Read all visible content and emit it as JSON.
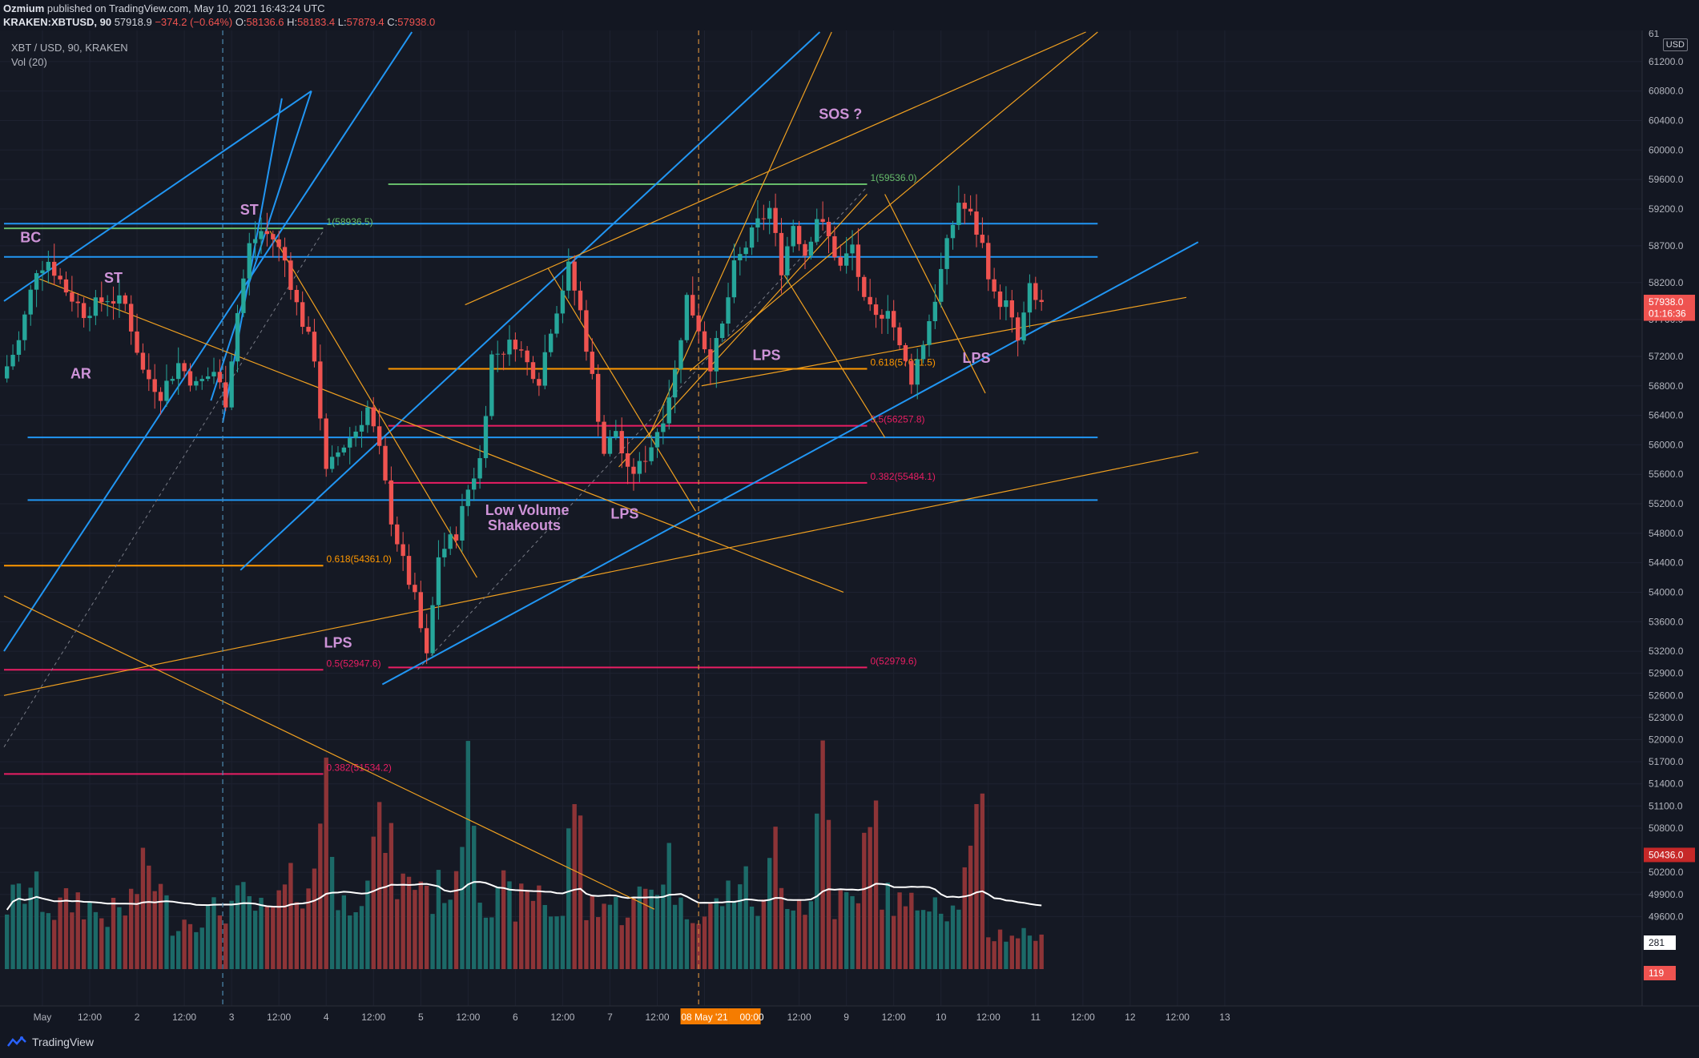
{
  "header": {
    "author": "Ozmium",
    "published_text": "published on TradingView.com, May 10, 2021 16:43:24 UTC",
    "symbol_line": "KRAKEN:XBTUSD, 90",
    "last": "57918.9",
    "change": "−374.2 (−0.64%)",
    "o_label": "O:",
    "o_value": "58136.6",
    "h_label": "H:",
    "h_value": "58183.4",
    "l_label": "L:",
    "l_value": "57879.4",
    "c_label": "C:",
    "c_value": "57938.0"
  },
  "legend": {
    "series_title": "XBT / USD, 90, KRAKEN",
    "volume_title": "Vol (20)"
  },
  "currency_badge": "USD",
  "footer": {
    "brand": "TradingView"
  },
  "colors": {
    "up": "#26a69a",
    "down": "#ef5350",
    "vol_up": "#1c6a68",
    "vol_down": "#8d3437",
    "blue_line": "#2196f3",
    "orange_line": "#f0a020",
    "fib_green": "#66bb6a",
    "fib_orange": "#ff9800",
    "fib_red": "#e91e63",
    "annotation": "#ce93d8",
    "ma": "#ffffff"
  },
  "chart_data": {
    "type": "candlestick",
    "title": "XBT / USD, 90, KRAKEN",
    "y_axis": {
      "min": 48800,
      "max": 61600,
      "ticks": [
        61200,
        60800,
        60400,
        60000,
        59600,
        59200,
        58700,
        58200,
        57700,
        57200,
        56800,
        56400,
        56000,
        55600,
        55200,
        54800,
        54400,
        54000,
        53600,
        53200,
        52900,
        52600,
        52300,
        52000,
        51700,
        51400,
        51100,
        50800,
        50200,
        49900,
        49600
      ],
      "tick_labels": [
        "61200.0",
        "60800.0",
        "60400.0",
        "60000.0",
        "59600.0",
        "59200.0",
        "58700.0",
        "58200.0",
        "57700.0",
        "57200.0",
        "56800.0",
        "56400.0",
        "56000.0",
        "55600.0",
        "55200.0",
        "54800.0",
        "54400.0",
        "54000.0",
        "53600.0",
        "53200.0",
        "52900.0",
        "52600.0",
        "52300.0",
        "52000.0",
        "51700.0",
        "51400.0",
        "51100.0",
        "50800.0",
        "50200.0",
        "49900.0",
        "49600.0"
      ]
    },
    "x_axis": {
      "min": 0,
      "max": 300,
      "ticks": [
        {
          "x": 6.5,
          "label": "May"
        },
        {
          "x": 14.5,
          "label": "12:00"
        },
        {
          "x": 22.5,
          "label": "2"
        },
        {
          "x": 30.5,
          "label": "12:00"
        },
        {
          "x": 38.5,
          "label": "3"
        },
        {
          "x": 46.5,
          "label": "12:00"
        },
        {
          "x": 54.5,
          "label": "4"
        },
        {
          "x": 62.5,
          "label": "12:00"
        },
        {
          "x": 70.5,
          "label": "5"
        },
        {
          "x": 78.5,
          "label": "12:00"
        },
        {
          "x": 86.5,
          "label": "6"
        },
        {
          "x": 94.5,
          "label": "12:00"
        },
        {
          "x": 102.5,
          "label": "7"
        },
        {
          "x": 110.5,
          "label": "12:00"
        },
        {
          "x": 118.5,
          "label": "08 May '21"
        },
        {
          "x": 126.5,
          "label": "00:00"
        },
        {
          "x": 134.5,
          "label": "12:00"
        },
        {
          "x": 142.5,
          "label": "9"
        },
        {
          "x": 150.5,
          "label": "12:00"
        },
        {
          "x": 158.5,
          "label": "10"
        },
        {
          "x": 166.5,
          "label": "12:00"
        },
        {
          "x": 174.5,
          "label": "11"
        },
        {
          "x": 182.5,
          "label": "12:00"
        },
        {
          "x": 190.5,
          "label": "12"
        },
        {
          "x": 198.5,
          "label": "12:00"
        },
        {
          "x": 206.5,
          "label": "13"
        }
      ]
    },
    "price_anchors": [
      [
        0,
        56900
      ],
      [
        3,
        57400
      ],
      [
        6,
        58400
      ],
      [
        8,
        58500
      ],
      [
        11,
        58100
      ],
      [
        14,
        57800
      ],
      [
        18,
        58000
      ],
      [
        21,
        57900
      ],
      [
        24,
        57000
      ],
      [
        27,
        56700
      ],
      [
        30,
        57100
      ],
      [
        33,
        56800
      ],
      [
        36,
        57000
      ],
      [
        38,
        56600
      ],
      [
        40,
        57800
      ],
      [
        42,
        58700
      ],
      [
        44,
        58900
      ],
      [
        46,
        58800
      ],
      [
        48,
        58500
      ],
      [
        50,
        57900
      ],
      [
        53,
        57200
      ],
      [
        55,
        55600
      ],
      [
        57,
        55900
      ],
      [
        60,
        56200
      ],
      [
        62,
        56500
      ],
      [
        64,
        55900
      ],
      [
        66,
        55000
      ],
      [
        68,
        54400
      ],
      [
        70,
        53900
      ],
      [
        72,
        53100
      ],
      [
        74,
        54500
      ],
      [
        77,
        54800
      ],
      [
        79,
        55400
      ],
      [
        81,
        55800
      ],
      [
        83,
        57200
      ],
      [
        85,
        57300
      ],
      [
        87,
        57400
      ],
      [
        89,
        57100
      ],
      [
        91,
        56900
      ],
      [
        93,
        57600
      ],
      [
        96,
        58400
      ],
      [
        98,
        57800
      ],
      [
        100,
        56900
      ],
      [
        102,
        55900
      ],
      [
        104,
        56200
      ],
      [
        106,
        55600
      ],
      [
        108,
        55700
      ],
      [
        110,
        56000
      ],
      [
        112,
        56400
      ],
      [
        114,
        57000
      ],
      [
        116,
        58000
      ],
      [
        118,
        57600
      ],
      [
        120,
        57100
      ],
      [
        122,
        57600
      ],
      [
        124,
        58400
      ],
      [
        126,
        58700
      ],
      [
        128,
        59000
      ],
      [
        130,
        59200
      ],
      [
        132,
        58400
      ],
      [
        134,
        59000
      ],
      [
        136,
        58600
      ],
      [
        138,
        59100
      ],
      [
        140,
        58800
      ],
      [
        142,
        58400
      ],
      [
        144,
        58700
      ],
      [
        146,
        57900
      ],
      [
        148,
        57700
      ],
      [
        150,
        57900
      ],
      [
        152,
        57300
      ],
      [
        154,
        56900
      ],
      [
        156,
        57400
      ],
      [
        158,
        58000
      ],
      [
        160,
        58700
      ],
      [
        162,
        59300
      ],
      [
        164,
        59100
      ],
      [
        166,
        58700
      ],
      [
        168,
        58000
      ],
      [
        170,
        57900
      ],
      [
        172,
        57400
      ],
      [
        174,
        58100
      ],
      [
        175,
        57938
      ]
    ],
    "volume_anchors": [
      [
        0,
        1100
      ],
      [
        4,
        1400
      ],
      [
        8,
        1000
      ],
      [
        12,
        1200
      ],
      [
        16,
        900
      ],
      [
        20,
        1000
      ],
      [
        24,
        1800
      ],
      [
        28,
        800
      ],
      [
        32,
        900
      ],
      [
        36,
        1000
      ],
      [
        40,
        1200
      ],
      [
        44,
        900
      ],
      [
        48,
        1400
      ],
      [
        52,
        1500
      ],
      [
        54,
        3800
      ],
      [
        56,
        1000
      ],
      [
        58,
        1200
      ],
      [
        60,
        1500
      ],
      [
        62,
        2100
      ],
      [
        64,
        2400
      ],
      [
        66,
        1500
      ],
      [
        68,
        1400
      ],
      [
        70,
        1600
      ],
      [
        72,
        1200
      ],
      [
        74,
        1500
      ],
      [
        76,
        1300
      ],
      [
        78,
        4400
      ],
      [
        80,
        1500
      ],
      [
        82,
        1000
      ],
      [
        84,
        1300
      ],
      [
        86,
        1100
      ],
      [
        88,
        1200
      ],
      [
        90,
        1400
      ],
      [
        92,
        1000
      ],
      [
        94,
        900
      ],
      [
        96,
        3300
      ],
      [
        98,
        1000
      ],
      [
        100,
        1200
      ],
      [
        102,
        1100
      ],
      [
        104,
        1000
      ],
      [
        106,
        1100
      ],
      [
        108,
        1300
      ],
      [
        110,
        1500
      ],
      [
        112,
        1900
      ],
      [
        114,
        1000
      ],
      [
        116,
        1100
      ],
      [
        118,
        900
      ],
      [
        120,
        1100
      ],
      [
        122,
        1300
      ],
      [
        124,
        1600
      ],
      [
        126,
        1200
      ],
      [
        128,
        1000
      ],
      [
        130,
        2300
      ],
      [
        132,
        1300
      ],
      [
        134,
        1200
      ],
      [
        136,
        1100
      ],
      [
        138,
        3900
      ],
      [
        140,
        1100
      ],
      [
        142,
        1200
      ],
      [
        144,
        1000
      ],
      [
        146,
        3300
      ],
      [
        148,
        1300
      ],
      [
        150,
        1200
      ],
      [
        152,
        1000
      ],
      [
        154,
        1100
      ],
      [
        156,
        1400
      ],
      [
        158,
        1200
      ],
      [
        160,
        1000
      ],
      [
        162,
        1500
      ],
      [
        164,
        2200
      ],
      [
        165,
        2600
      ],
      [
        166,
        600
      ]
    ],
    "volume_axis": {
      "min": 0,
      "max": 7000
    },
    "volume_ma_label": "281",
    "volume_low_label": "119",
    "horizontal_lines": [
      {
        "price": 59000,
        "x_from": 0,
        "x_to": 185,
        "color": "blue"
      },
      {
        "price": 58550,
        "x_from": 0,
        "x_to": 185,
        "color": "blue"
      },
      {
        "price": 56100,
        "x_from": 4,
        "x_to": 185,
        "color": "blue"
      },
      {
        "price": 55250,
        "x_from": 4,
        "x_to": 185,
        "color": "blue"
      }
    ],
    "fib_levels": [
      {
        "price": 58936.5,
        "x_from": 0,
        "x_to": 54,
        "label": "1(58936.5)",
        "color": "fib_green"
      },
      {
        "price": 54361.0,
        "x_from": 0,
        "x_to": 54,
        "label": "0.618(54361.0)",
        "color": "fib_orange"
      },
      {
        "price": 52947.6,
        "x_from": 0,
        "x_to": 54,
        "label": "0.5(52947.6)",
        "color": "fib_red"
      },
      {
        "price": 51534.2,
        "x_from": 0,
        "x_to": 54,
        "label": "0.382(51534.2)",
        "color": "fib_red"
      },
      {
        "price": 59536.0,
        "x_from": 65,
        "x_to": 146,
        "label": "1(59536.0)",
        "color": "fib_green"
      },
      {
        "price": 57031.5,
        "x_from": 65,
        "x_to": 146,
        "label": "0.618(57031.5)",
        "color": "fib_orange"
      },
      {
        "price": 56257.8,
        "x_from": 65,
        "x_to": 146,
        "label": "0.5(56257.8)",
        "color": "fib_red"
      },
      {
        "price": 55484.1,
        "x_from": 65,
        "x_to": 146,
        "label": "0.382(55484.1)",
        "color": "fib_red"
      },
      {
        "price": 52979.6,
        "x_from": 65,
        "x_to": 146,
        "label": "0(52979.6)",
        "color": "fib_red"
      }
    ],
    "trend_lines": [
      {
        "p1": [
          0,
          53200
        ],
        "p2": [
          69,
          61600
        ],
        "color": "blue"
      },
      {
        "p1": [
          0,
          57950
        ],
        "p2": [
          52,
          60800
        ],
        "color": "blue"
      },
      {
        "p1": [
          37,
          56300
        ],
        "p2": [
          47,
          60700
        ],
        "color": "blue"
      },
      {
        "p1": [
          35,
          56600
        ],
        "p2": [
          52,
          60800
        ],
        "color": "blue"
      },
      {
        "p1": [
          64,
          52750
        ],
        "p2": [
          202,
          58750
        ],
        "color": "blue"
      },
      {
        "p1": [
          40,
          54300
        ],
        "p2": [
          138,
          61600
        ],
        "color": "blue"
      },
      {
        "p1": [
          6,
          58250
        ],
        "p2": [
          142,
          54000
        ],
        "color": "orange"
      },
      {
        "p1": [
          0,
          52600
        ],
        "p2": [
          202,
          55900
        ],
        "color": "orange"
      },
      {
        "p1": [
          0,
          53950
        ],
        "p2": [
          110,
          49700
        ],
        "color": "orange"
      },
      {
        "p1": [
          78,
          57900
        ],
        "p2": [
          183,
          61600
        ],
        "color": "orange"
      },
      {
        "p1": [
          116,
          57000
        ],
        "p2": [
          185,
          61600
        ],
        "color": "orange"
      },
      {
        "p1": [
          118,
          56800
        ],
        "p2": [
          200,
          58000
        ],
        "color": "orange"
      },
      {
        "p1": [
          45,
          58900
        ],
        "p2": [
          80,
          54200
        ],
        "color": "orange"
      },
      {
        "p1": [
          92,
          58400
        ],
        "p2": [
          117,
          55100
        ],
        "color": "orange"
      },
      {
        "p1": [
          132,
          58300
        ],
        "p2": [
          149,
          56100
        ],
        "color": "orange"
      },
      {
        "p1": [
          149,
          59400
        ],
        "p2": [
          166,
          56700
        ],
        "color": "orange"
      },
      {
        "p1": [
          104,
          55700
        ],
        "p2": [
          146,
          59400
        ],
        "color": "orange"
      },
      {
        "p1": [
          109,
          56100
        ],
        "p2": [
          140,
          61600
        ],
        "color": "orange"
      }
    ],
    "dashed_lines": [
      {
        "p1": [
          0,
          51900
        ],
        "p2": [
          54,
          58900
        ],
        "color": "#787b86"
      },
      {
        "p1": [
          70,
          52950
        ],
        "p2": [
          146,
          59500
        ],
        "color": "#787b86"
      }
    ],
    "vertical_dashed": [
      {
        "x": 37,
        "color": "#4e8ab0"
      },
      {
        "x": 117.5,
        "color": "#d08a3c"
      }
    ],
    "annotations": [
      {
        "text": "BC",
        "x": 4.5,
        "price": 58750
      },
      {
        "text": "ST",
        "x": 18.5,
        "price": 58200
      },
      {
        "text": "AR",
        "x": 13,
        "price": 56900
      },
      {
        "text": "ST",
        "x": 41.5,
        "price": 59120
      },
      {
        "text": "LPS",
        "x": 56.5,
        "price": 53250
      },
      {
        "text": "Low Volume",
        "x": 88.5,
        "price": 55050
      },
      {
        "text": "Shakeouts",
        "x": 88,
        "price": 54840
      },
      {
        "text": "LPS",
        "x": 105,
        "price": 55000
      },
      {
        "text": "LPS",
        "x": 129,
        "price": 57150
      },
      {
        "text": "SOS ?",
        "x": 141.5,
        "price": 60420
      },
      {
        "text": "LPS",
        "x": 164.5,
        "price": 57110
      }
    ],
    "price_labels": [
      {
        "label": "57938.0",
        "price": 57938.0,
        "color": "#ef5350"
      },
      {
        "label": "01:16:36",
        "price": 57780,
        "color": "#ef5350"
      },
      {
        "label": "50436.0",
        "price": 50436.0,
        "color": "#c62828"
      }
    ],
    "top_partial_tick": "61"
  }
}
